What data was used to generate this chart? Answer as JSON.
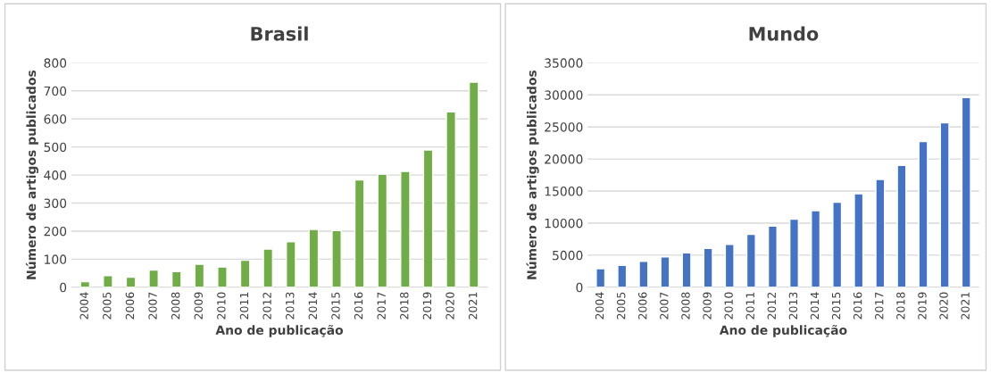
{
  "chart_data": [
    {
      "type": "bar",
      "title": "Brasil",
      "xlabel": "Ano de publicação",
      "ylabel": "Número de artigos publicados",
      "categories": [
        "2004",
        "2005",
        "2006",
        "2007",
        "2008",
        "2009",
        "2010",
        "2011",
        "2012",
        "2013",
        "2014",
        "2015",
        "2016",
        "2017",
        "2018",
        "2019",
        "2020",
        "2021"
      ],
      "values": [
        20,
        41,
        36,
        61,
        56,
        82,
        72,
        96,
        136,
        162,
        206,
        202,
        383,
        403,
        413,
        489,
        625,
        731
      ],
      "color": "#70ad47",
      "ylim": [
        0,
        800
      ],
      "yticks": [
        0,
        100,
        200,
        300,
        400,
        500,
        600,
        700,
        800
      ],
      "grid": "y"
    },
    {
      "type": "bar",
      "title": "Mundo",
      "xlabel": "Ano de publicação",
      "ylabel": "Número de artigos publicados",
      "categories": [
        "2004",
        "2005",
        "2006",
        "2007",
        "2008",
        "2009",
        "2010",
        "2011",
        "2012",
        "2013",
        "2014",
        "2015",
        "2016",
        "2017",
        "2018",
        "2019",
        "2020",
        "2021"
      ],
      "values": [
        2900,
        3400,
        4050,
        4730,
        5360,
        6040,
        6680,
        8240,
        9550,
        10620,
        11940,
        13260,
        14570,
        16810,
        19010,
        22710,
        25640,
        29580
      ],
      "color": "#4472c4",
      "ylim": [
        0,
        35000
      ],
      "yticks": [
        0,
        5000,
        10000,
        15000,
        20000,
        25000,
        30000,
        35000
      ],
      "grid": "y"
    }
  ]
}
